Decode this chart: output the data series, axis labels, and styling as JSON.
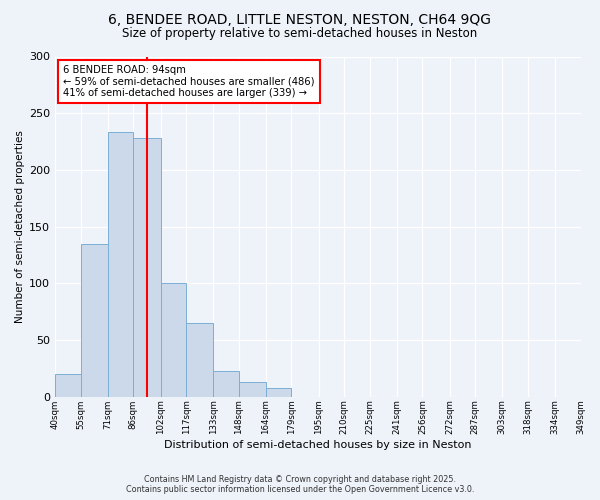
{
  "title1": "6, BENDEE ROAD, LITTLE NESTON, NESTON, CH64 9QG",
  "title2": "Size of property relative to semi-detached houses in Neston",
  "xlabel": "Distribution of semi-detached houses by size in Neston",
  "ylabel": "Number of semi-detached properties",
  "bin_edges": [
    40,
    55,
    71,
    86,
    102,
    117,
    133,
    148,
    164,
    179,
    195,
    210,
    225,
    241,
    256,
    272,
    287,
    303,
    318,
    334,
    349
  ],
  "counts": [
    20,
    135,
    233,
    228,
    100,
    65,
    23,
    13,
    8,
    0,
    0,
    0,
    0,
    0,
    0,
    0,
    0,
    0,
    0,
    0
  ],
  "bar_color": "#ccd9ea",
  "bar_edge_color": "#7aafd4",
  "vline_x": 94,
  "vline_color": "red",
  "annotation_title": "6 BENDEE ROAD: 94sqm",
  "annotation_line1": "← 59% of semi-detached houses are smaller (486)",
  "annotation_line2": "41% of semi-detached houses are larger (339) →",
  "annotation_box_color": "white",
  "annotation_box_edge_color": "red",
  "ylim": [
    0,
    300
  ],
  "yticks": [
    0,
    50,
    100,
    150,
    200,
    250,
    300
  ],
  "background_color": "#eef2f9",
  "grid_color": "#dde6f0",
  "footer1": "Contains HM Land Registry data © Crown copyright and database right 2025.",
  "footer2": "Contains public sector information licensed under the Open Government Licence v3.0."
}
